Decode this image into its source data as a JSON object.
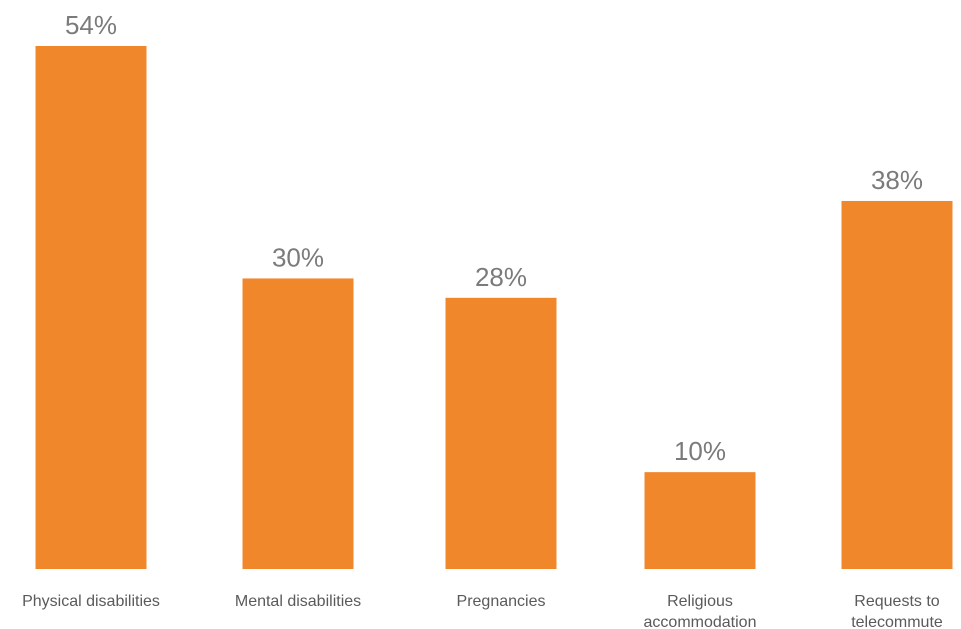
{
  "chart_data": {
    "type": "bar",
    "title": "",
    "xlabel": "",
    "ylabel": "",
    "ylim": [
      0,
      54
    ],
    "grid": false,
    "legend": "none",
    "value_suffix": "%",
    "categories": [
      [
        "Physical disabilities"
      ],
      [
        "Mental disabilities"
      ],
      [
        "Pregnancies"
      ],
      [
        "Religious",
        "accommodation"
      ],
      [
        "Requests to",
        "telecommute"
      ]
    ],
    "values": [
      54,
      30,
      28,
      10,
      38
    ],
    "value_labels": [
      "54%",
      "30%",
      "28%",
      "10%",
      "38%"
    ],
    "colors": {
      "bar": "#f0872b",
      "value_text": "#7b7b7b",
      "category_text": "#5a5a5a",
      "background": "#ffffff"
    }
  }
}
